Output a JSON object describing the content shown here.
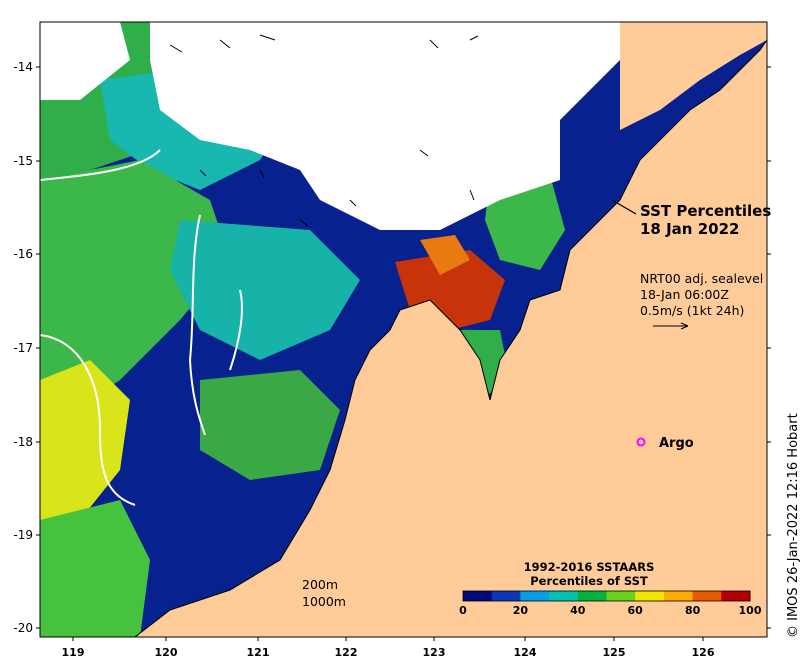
{
  "map": {
    "title_line1": "SST Percentiles",
    "title_line2": "18 Jan 2022",
    "sealevel_line1": "NRT00 adj. sealevel",
    "sealevel_line2": "18-Jan 06:00Z",
    "sealevel_line3": "0.5m/s (1kt 24h)",
    "contour_label_1": "200m",
    "contour_label_2": "1000m",
    "argo_label": "Argo",
    "credit": "© IMOS 26-Jan-2022 12:16 Hobart",
    "lat_ticks": [
      "-14",
      "-15",
      "-16",
      "-17",
      "-18",
      "-19",
      "-20"
    ],
    "lon_ticks": [
      "119",
      "120",
      "121",
      "122",
      "123",
      "124",
      "125",
      "126"
    ],
    "colorbar": {
      "title_line1": "1992-2016 SSTAARS",
      "title_line2": "Percentiles of SST",
      "tick_labels": [
        "0",
        "20",
        "40",
        "60",
        "80",
        "100"
      ],
      "colors": [
        "#000a7a",
        "#0a37b8",
        "#00a0e6",
        "#00c3b4",
        "#00b43c",
        "#64d21e",
        "#f0e600",
        "#ffaa00",
        "#e65a00",
        "#b40000"
      ]
    },
    "colors": {
      "land": "#ffcc99",
      "cloud": "#ffffff",
      "argo": "#ff00ff"
    }
  }
}
